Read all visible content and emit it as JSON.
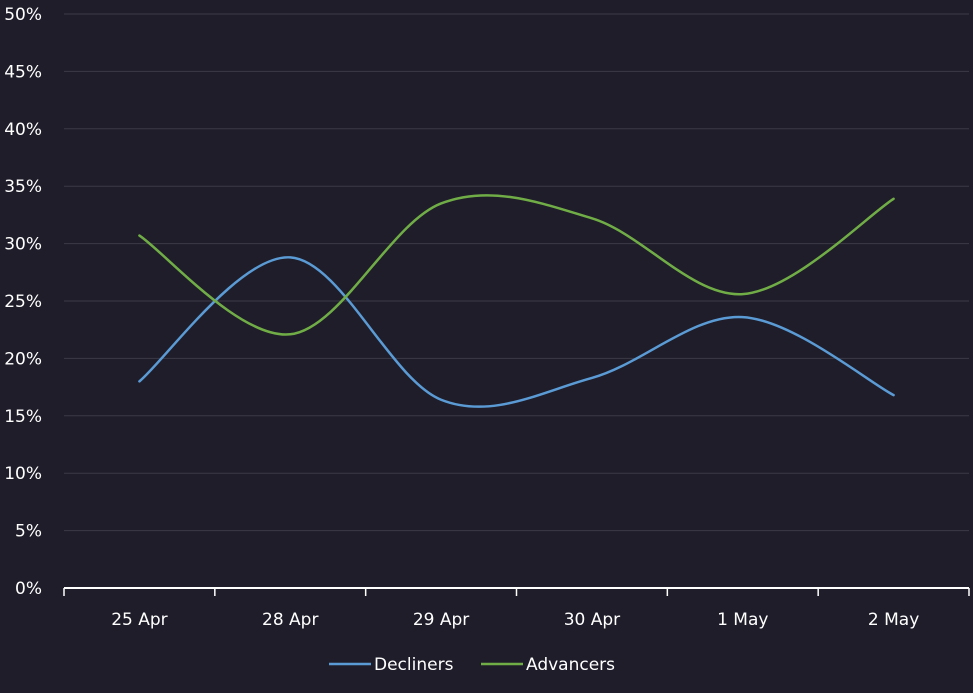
{
  "chart_data": {
    "type": "line",
    "title": "",
    "xlabel": "",
    "ylabel": "",
    "categories": [
      "25 Apr",
      "28 Apr",
      "29 Apr",
      "30 Apr",
      "1 May",
      "2 May"
    ],
    "ylim": [
      0,
      50
    ],
    "yticks": [
      0,
      5,
      10,
      15,
      20,
      25,
      30,
      35,
      40,
      45,
      50
    ],
    "ytick_labels": [
      "0%",
      "5%",
      "10%",
      "15%",
      "20%",
      "25%",
      "30%",
      "35%",
      "40%",
      "45%",
      "50%"
    ],
    "grid": true,
    "legend_position": "bottom-center",
    "series": [
      {
        "name": "Decliners",
        "color": "#5b9bd5",
        "values": [
          18.0,
          28.8,
          16.4,
          18.3,
          23.6,
          16.8
        ]
      },
      {
        "name": "Advancers",
        "color": "#70ad47",
        "values": [
          30.7,
          22.1,
          33.5,
          32.2,
          25.6,
          33.9
        ]
      }
    ]
  }
}
